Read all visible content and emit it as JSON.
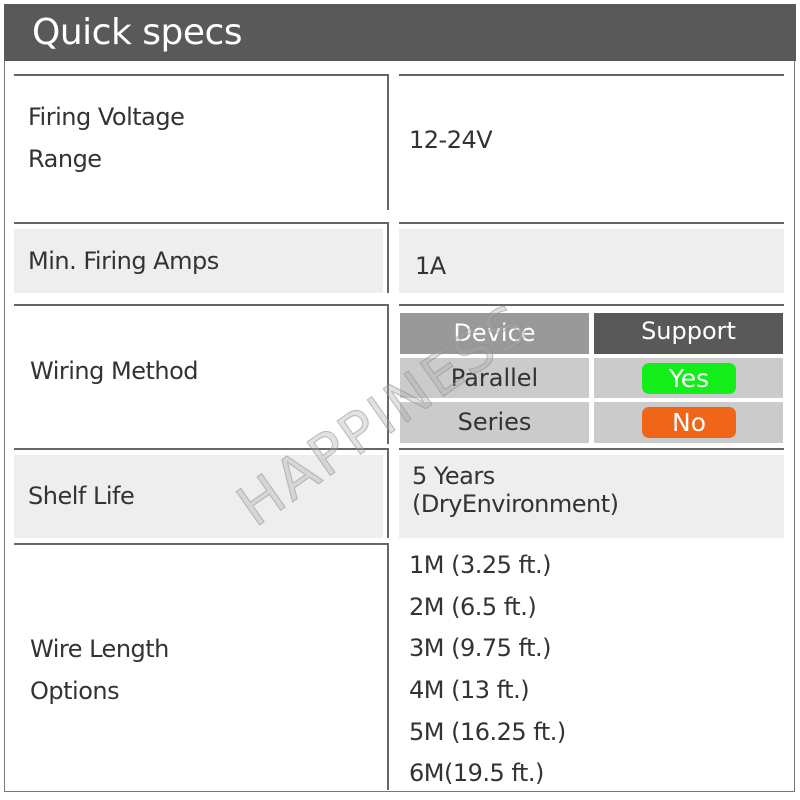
{
  "title": "Quick specs",
  "rows": [
    {
      "label_lines": [
        "Firing Voltage",
        "Range"
      ],
      "value": "12-24V"
    },
    {
      "label": "Min. Firing Amps",
      "value": "1A"
    },
    {
      "label": "Wiring Method",
      "table": {
        "headers": [
          "Device",
          "Support"
        ],
        "rows": [
          {
            "device": "Parallel",
            "support": "Yes"
          },
          {
            "device": "Series",
            "support": "No"
          }
        ]
      }
    },
    {
      "label": "Shelf Life",
      "value_lines": [
        "5 Years",
        "(DryEnvironment)"
      ]
    },
    {
      "label_lines": [
        "Wire Length",
        "Options"
      ],
      "options": [
        "1M (3.25 ft.)",
        "2M (6.5 ft.)",
        "3M (9.75 ft.)",
        "4M (13 ft.)",
        "5M (16.25 ft.)",
        "6M(19.5 ft.)"
      ]
    }
  ],
  "watermark": "HAPPINESS",
  "colors": {
    "header": "#5a595a",
    "yes": "#13ee1a",
    "no": "#f06518",
    "table_header_device": "#9a999a",
    "table_header_support": "#5a595a",
    "table_cell": "#cccbcc"
  }
}
